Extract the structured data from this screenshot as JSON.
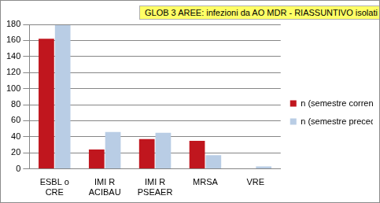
{
  "chart_data": {
    "type": "bar",
    "title": "GLOB 3 AREE: infezioni da AO MDR - RIASSUNTIVO isolati",
    "categories": [
      "ESBL o CRE",
      "IMI R ACIBAU",
      "IMI R PSEAER",
      "MRSA",
      "VRE"
    ],
    "series": [
      {
        "name": "n (semestre corrente)",
        "color": "#c0161e",
        "values": [
          162,
          24,
          37,
          35,
          0
        ]
      },
      {
        "name": "n (semestre preced.)",
        "color": "#b9cde5",
        "values": [
          179,
          46,
          45,
          17,
          3
        ]
      }
    ],
    "ylim": [
      0,
      180
    ],
    "yticks": [
      0,
      20,
      40,
      60,
      80,
      100,
      120,
      140,
      160,
      180
    ],
    "grid": true,
    "legend": "right"
  }
}
